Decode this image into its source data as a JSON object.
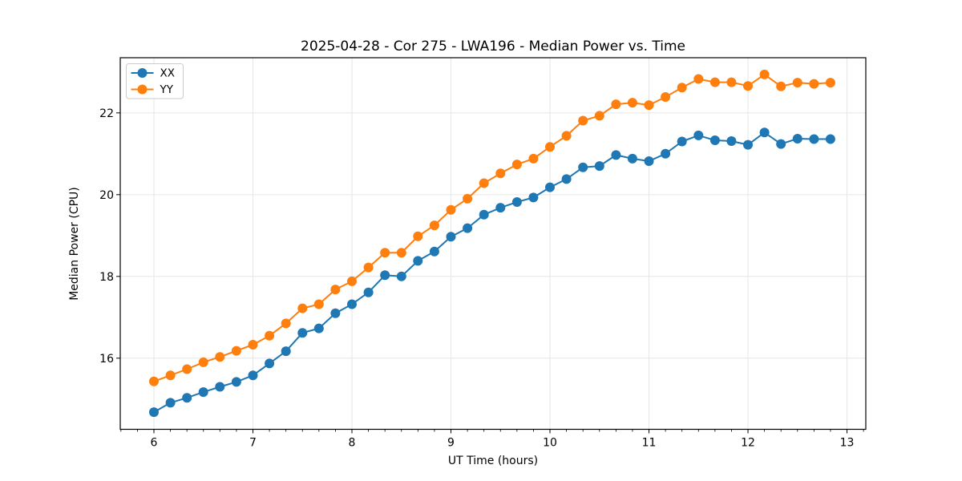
{
  "figure": {
    "title": "2025-04-28 - Cor 275 - LWA196 - Median Power vs. Time",
    "xlabel": "UT Time (hours)",
    "ylabel": "Median Power (CPU)"
  },
  "legend": {
    "entries": [
      "XX",
      "YY"
    ],
    "position": "upper-left"
  },
  "colors": {
    "xx": "#1f77b4",
    "yy": "#ff7f0e",
    "grid": "#e6e6e6",
    "spine": "#000000"
  },
  "chart_data": {
    "type": "line",
    "title": "2025-04-28 - Cor 275 - LWA196 - Median Power vs. Time",
    "xlabel": "UT Time (hours)",
    "ylabel": "Median Power (CPU)",
    "xlim": [
      5.66,
      13.19
    ],
    "ylim": [
      14.26,
      23.35
    ],
    "xticks": [
      6,
      7,
      8,
      9,
      10,
      11,
      12,
      13
    ],
    "yticks": [
      16,
      18,
      20,
      22
    ],
    "x_minor_step": 0.166667,
    "grid": true,
    "legend_position": "upper-left",
    "marker": "circle",
    "x": [
      6.0,
      6.1667,
      6.3333,
      6.5,
      6.6667,
      6.8333,
      7.0,
      7.1667,
      7.3333,
      7.5,
      7.6667,
      7.8333,
      8.0,
      8.1667,
      8.3333,
      8.5,
      8.6667,
      8.8333,
      9.0,
      9.1667,
      9.3333,
      9.5,
      9.6667,
      9.8333,
      10.0,
      10.1667,
      10.3333,
      10.5,
      10.6667,
      10.8333,
      11.0,
      11.1667,
      11.3333,
      11.5,
      11.6667,
      11.8333,
      12.0,
      12.1667,
      12.3333,
      12.5,
      12.6667,
      12.8333
    ],
    "series": [
      {
        "name": "XX",
        "color": "#1f77b4",
        "values": [
          14.68,
          14.91,
          15.03,
          15.17,
          15.3,
          15.42,
          15.58,
          15.87,
          16.17,
          16.62,
          16.73,
          17.1,
          17.32,
          17.61,
          18.03,
          18.0,
          18.38,
          18.61,
          18.97,
          19.18,
          19.51,
          19.68,
          19.82,
          19.93,
          20.18,
          20.38,
          20.67,
          20.7,
          20.97,
          20.88,
          20.82,
          21.0,
          21.3,
          21.45,
          21.33,
          21.31,
          21.22,
          21.52,
          21.24,
          21.37,
          21.36,
          21.36
        ]
      },
      {
        "name": "YY",
        "color": "#ff7f0e",
        "values": [
          15.43,
          15.58,
          15.73,
          15.9,
          16.03,
          16.18,
          16.33,
          16.55,
          16.85,
          17.22,
          17.32,
          17.68,
          17.88,
          18.22,
          18.58,
          18.58,
          18.98,
          19.25,
          19.63,
          19.9,
          20.28,
          20.52,
          20.74,
          20.88,
          21.17,
          21.44,
          21.81,
          21.93,
          22.21,
          22.25,
          22.19,
          22.39,
          22.62,
          22.83,
          22.75,
          22.75,
          22.66,
          22.94,
          22.65,
          22.74,
          22.71,
          22.74
        ]
      }
    ]
  }
}
